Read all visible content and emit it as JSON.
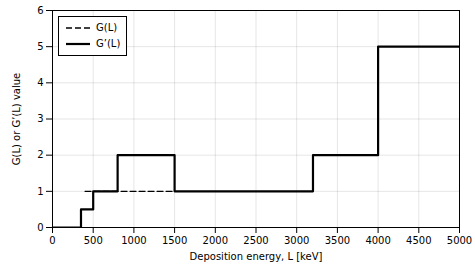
{
  "chart_data": {
    "type": "line",
    "xlabel": "Deposition energy, L [keV]",
    "ylabel": "G(L) or G’(L) value",
    "xlim": [
      0,
      5000
    ],
    "ylim": [
      0.0,
      6.0
    ],
    "xticks": [
      0,
      500,
      1000,
      1500,
      2000,
      2500,
      3000,
      3500,
      4000,
      4500,
      5000
    ],
    "yticks": [
      0.0,
      1.0,
      2.0,
      3.0,
      4.0,
      5.0,
      6.0
    ],
    "grid": true,
    "legend": "upper left",
    "series": [
      {
        "name": "G(L)",
        "color": "#000000",
        "line_style": "dashed",
        "x": [
          400,
          1500
        ],
        "values": [
          1.0,
          1.0
        ]
      },
      {
        "name": "G’(L)",
        "color": "#000000",
        "line_style": "solid",
        "x": [
          0,
          350,
          350,
          500,
          500,
          800,
          800,
          1500,
          1500,
          3200,
          3200,
          4000,
          4000,
          5000
        ],
        "values": [
          0.0,
          0.0,
          0.5,
          0.5,
          1.0,
          1.0,
          2.0,
          2.0,
          1.0,
          1.0,
          2.0,
          2.0,
          5.0,
          5.0
        ]
      }
    ]
  }
}
